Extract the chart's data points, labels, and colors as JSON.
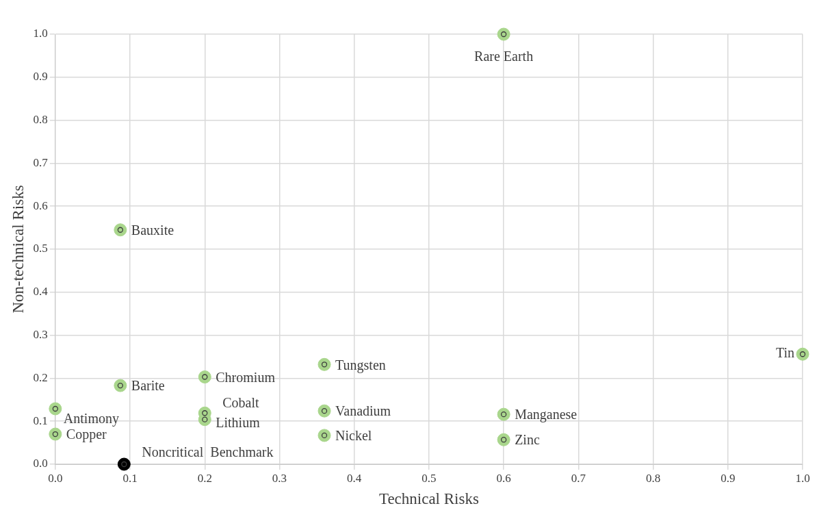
{
  "chart_data": {
    "type": "scatter",
    "xlabel": "Technical Risks",
    "ylabel": "Non-technical Risks",
    "xlim": [
      0,
      1
    ],
    "xticks": [
      {
        "value": 0,
        "label": "0.0"
      },
      0.1,
      0.2,
      0.3,
      0.4,
      0.5,
      0.6,
      0.7,
      0.8,
      0.9,
      {
        "value": 1,
        "label": "1.0"
      }
    ],
    "ylim": [
      0,
      1
    ],
    "yticks": [
      {
        "value": 0,
        "label": "0.0"
      },
      0.1,
      0.2,
      0.3,
      0.4,
      0.5,
      0.6,
      0.7,
      0.8,
      0.9,
      {
        "value": 1,
        "label": "1.0"
      }
    ],
    "grid": true,
    "legend": false,
    "marker": "circle",
    "series": [
      {
        "color": "#a9d68c",
        "x": [
          0.6,
          0.087,
          1.0,
          0.36,
          0.2,
          0.087,
          0,
          0.2,
          0.2,
          0.36,
          0.6,
          0,
          0.36,
          0.6
        ],
        "values": [
          1.0,
          0.545,
          0.256,
          0.232,
          0.203,
          0.183,
          0.129,
          0.119,
          0.104,
          0.124,
          0.116,
          0.07,
          0.067,
          0.057
        ]
      },
      {
        "color": "#000000",
        "x": [
          0.092
        ],
        "values": [
          0
        ]
      }
    ],
    "annotations": [
      {
        "text": "Rare Earth",
        "x": 0.6,
        "y": 1.0
      },
      {
        "text": "Bauxite",
        "x": 0.087,
        "y": 0.545
      },
      {
        "text": "Tin",
        "x": 1.0,
        "y": 0.256
      },
      {
        "text": "Tungsten",
        "x": 0.36,
        "y": 0.232
      },
      {
        "text": "Chromium",
        "x": 0.2,
        "y": 0.203
      },
      {
        "text": "Barite",
        "x": 0.087,
        "y": 0.183
      },
      {
        "text": "Antimony",
        "x": 0,
        "y": 0.129
      },
      {
        "text": "Cobalt",
        "x": 0.2,
        "y": 0.119
      },
      {
        "text": "Lithium",
        "x": 0.2,
        "y": 0.104
      },
      {
        "text": "Vanadium",
        "x": 0.36,
        "y": 0.124
      },
      {
        "text": "Manganese",
        "x": 0.6,
        "y": 0.116
      },
      {
        "text": "Copper",
        "x": 0,
        "y": 0.07
      },
      {
        "text": "Nickel",
        "x": 0.36,
        "y": 0.067
      },
      {
        "text": "Zinc",
        "x": 0.6,
        "y": 0.057
      },
      {
        "text": "Noncritical  Benchmark",
        "x": 0.092,
        "y": 0
      }
    ]
  }
}
